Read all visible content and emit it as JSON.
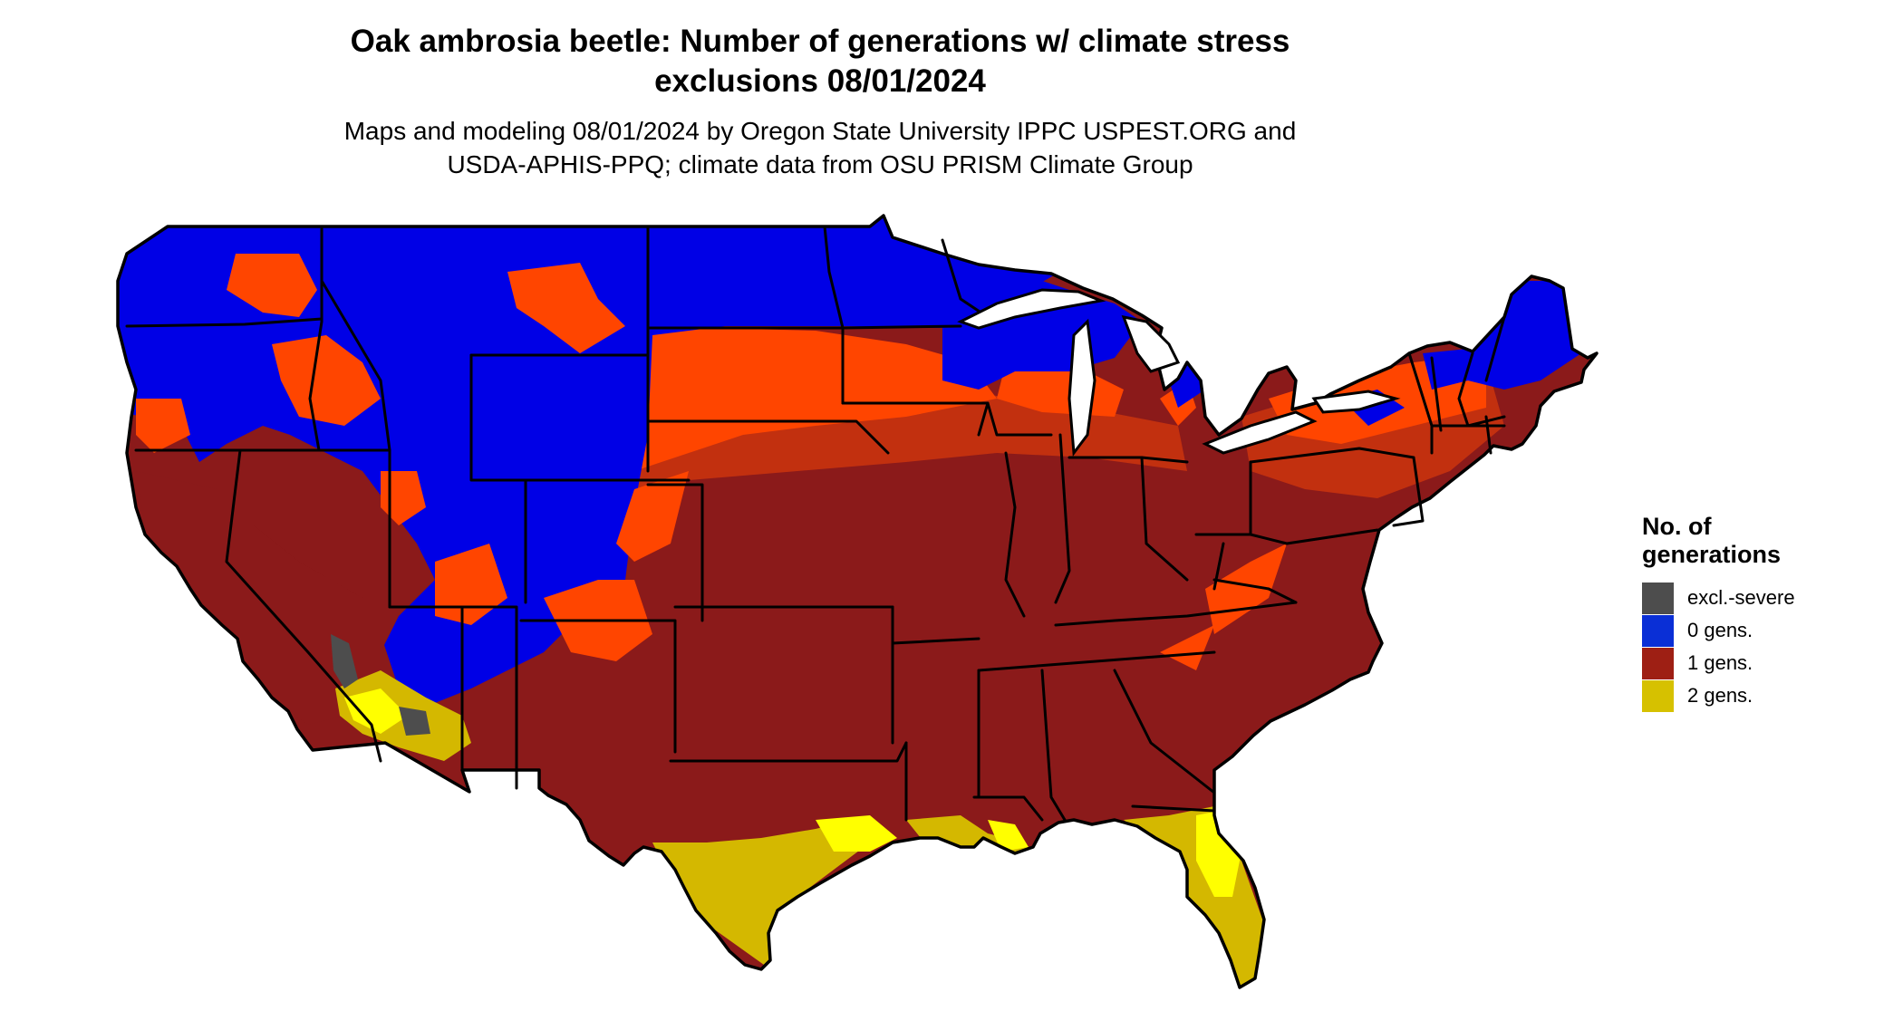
{
  "title": {
    "line1": "Oak ambrosia beetle: Number of generations w/ climate stress",
    "line2": "exclusions 08/01/2024"
  },
  "subtitle": {
    "line1": "Maps and modeling 08/01/2024 by Oregon State University IPPC USPEST.ORG and",
    "line2": "USDA-APHIS-PPQ; climate data from OSU PRISM Climate Group"
  },
  "legend": {
    "title_line1": "No. of",
    "title_line2": "generations",
    "items": [
      {
        "label": "excl.-severe",
        "color": "#4d4d4d"
      },
      {
        "label": "0 gens.",
        "color": "#0a2fd6"
      },
      {
        "label": "1 gens.",
        "color": "#9e1f14"
      },
      {
        "label": "2 gens.",
        "color": "#d6c100"
      }
    ]
  },
  "map_colors": {
    "zero_gens": "#0000e6",
    "one_gen_dark": "#8b1a1a",
    "one_gen_mid": "#c2300f",
    "one_gen_light": "#ff4500",
    "two_gens": "#d4b800",
    "two_gens_bright": "#ffff00",
    "excluded": "#4d4d4d",
    "borders": "#000000"
  }
}
